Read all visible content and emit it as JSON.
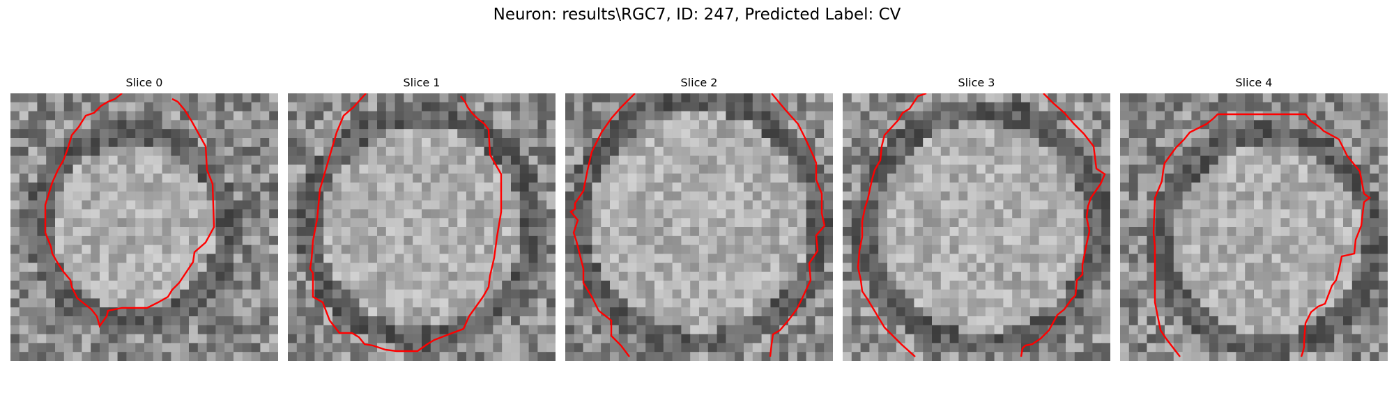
{
  "figure": {
    "suptitle": "Neuron: results\\RGC7, ID: 247, Predicted Label: CV"
  },
  "panels": [
    {
      "title": "Slice 0"
    },
    {
      "title": "Slice 1"
    },
    {
      "title": "Slice 2"
    },
    {
      "title": "Slice 3"
    },
    {
      "title": "Slice 4"
    }
  ],
  "colors": {
    "contour": "#ff0000",
    "background": "#ffffff",
    "colormap": "gray"
  }
}
